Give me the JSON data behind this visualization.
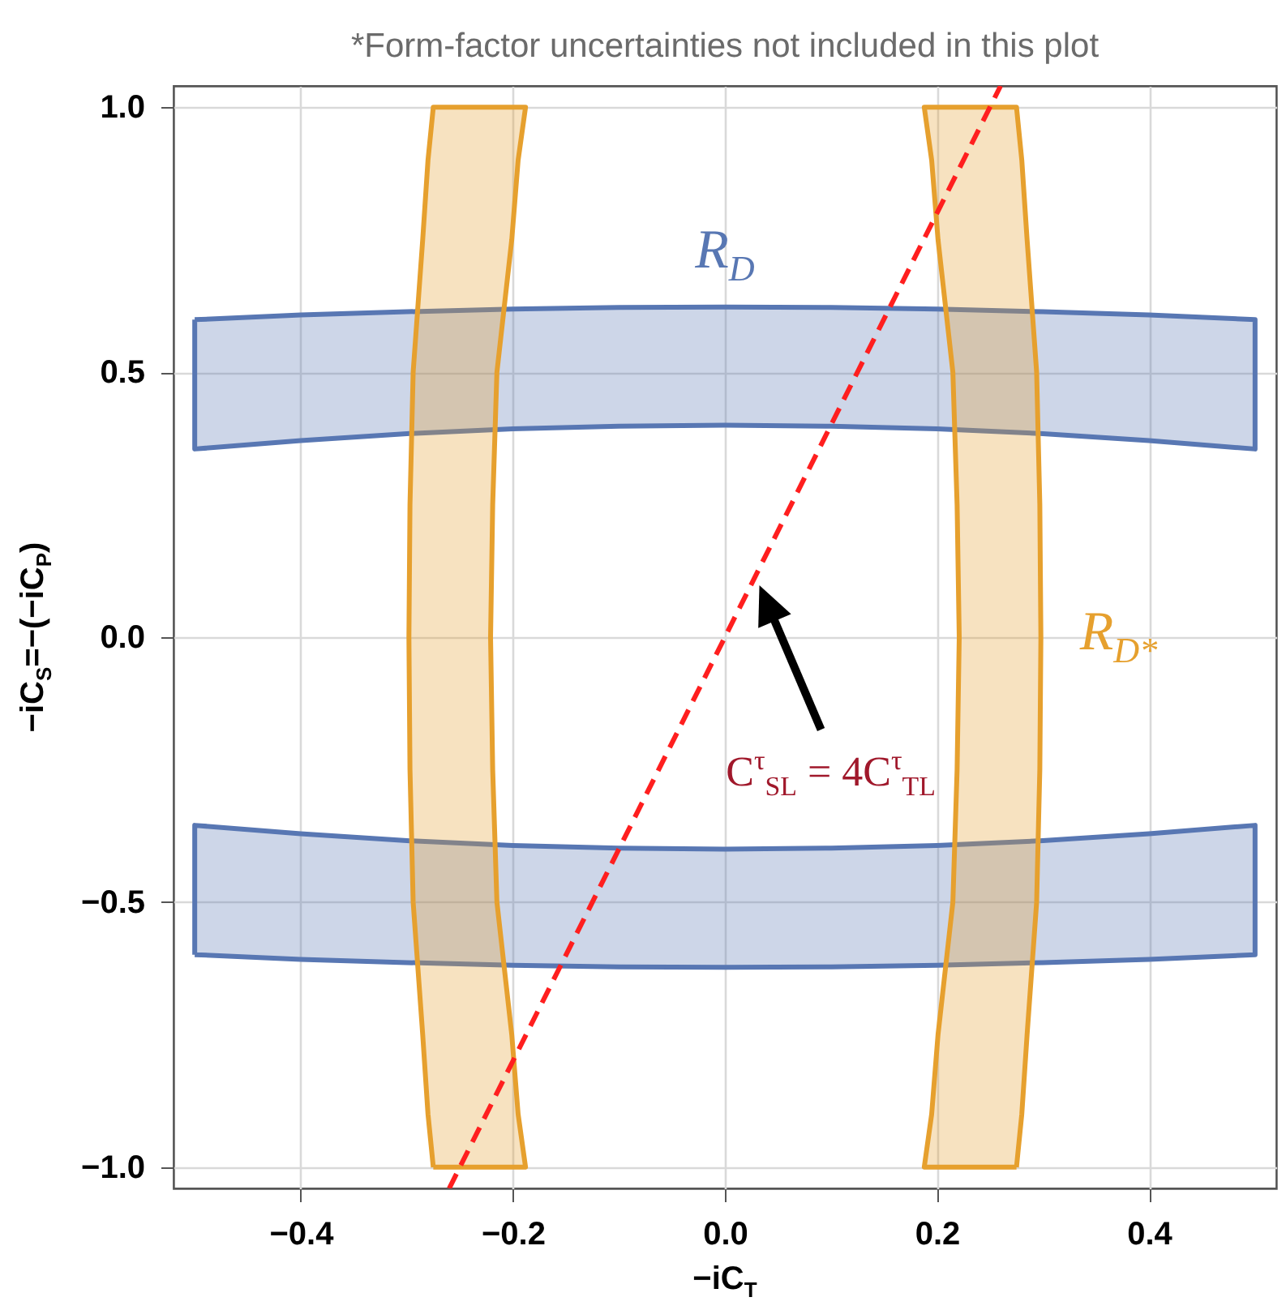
{
  "chart_data": {
    "type": "area",
    "title": "*Form-factor uncertainties not included in this plot",
    "xlabel": "−iC$_{T}$",
    "ylabel": "−iC$_{S}$=−(−iC$_{P}$)",
    "xlim": [
      -0.52,
      0.52
    ],
    "ylim": [
      -1.04,
      1.04
    ],
    "xticks": [
      {
        "value": -0.4,
        "label": "−0.4"
      },
      {
        "value": -0.2,
        "label": "−0.2"
      },
      {
        "value": 0,
        "label": "0.0"
      },
      {
        "value": 0.2,
        "label": "0.2"
      },
      {
        "value": 0.4,
        "label": "0.4"
      }
    ],
    "yticks": [
      {
        "value": -1,
        "label": "−1.0"
      },
      {
        "value": -0.5,
        "label": "−0.5"
      },
      {
        "value": 0,
        "label": "0.0"
      },
      {
        "value": 0.5,
        "label": "0.5"
      },
      {
        "value": 1,
        "label": "1.0"
      }
    ],
    "grid": true,
    "series": [
      {
        "name": "R$_{D}$",
        "color": "#5877b3",
        "x": [
          -0.5,
          -0.4,
          -0.3,
          -0.2,
          -0.1,
          0,
          0.1,
          0.2,
          0.3,
          0.4,
          0.5,
          0.5,
          0.4,
          0.3,
          0.2,
          0.1,
          0,
          -0.1,
          -0.2,
          -0.3,
          -0.4,
          -0.5,
          -0.5
        ],
        "values": [
          0.599,
          0.608,
          0.614,
          0.619,
          0.622,
          0.623,
          0.622,
          0.619,
          0.614,
          0.608,
          0.599,
          0.355,
          0.371,
          0.384,
          0.393,
          0.398,
          0.4,
          0.398,
          0.393,
          0.384,
          0.371,
          0.355,
          0.599
        ]
      },
      {
        "color": "#5877b3",
        "x": [
          -0.5,
          -0.4,
          -0.3,
          -0.2,
          -0.1,
          0,
          0.1,
          0.2,
          0.3,
          0.4,
          0.5,
          0.5,
          0.4,
          0.3,
          0.2,
          0.1,
          0,
          -0.1,
          -0.2,
          -0.3,
          -0.4,
          -0.5,
          -0.5
        ],
        "values": [
          -0.599,
          -0.608,
          -0.614,
          -0.619,
          -0.622,
          -0.623,
          -0.622,
          -0.619,
          -0.614,
          -0.608,
          -0.599,
          -0.355,
          -0.371,
          -0.384,
          -0.393,
          -0.398,
          -0.4,
          -0.398,
          -0.393,
          -0.384,
          -0.371,
          -0.355,
          -0.599
        ]
      },
      {
        "color": "#e6a02e",
        "x": [
          -0.275,
          -0.28,
          -0.285,
          -0.294,
          -0.297,
          -0.298,
          -0.297,
          -0.294,
          -0.285,
          -0.28,
          -0.275,
          -0.188,
          -0.195,
          -0.201,
          -0.215,
          -0.219,
          -0.221,
          -0.219,
          -0.215,
          -0.201,
          -0.195,
          -0.188,
          -0.275
        ],
        "values": [
          -1,
          -0.9,
          -0.75,
          -0.5,
          -0.25,
          0,
          0.25,
          0.5,
          0.75,
          0.9,
          1,
          1,
          0.9,
          0.75,
          0.5,
          0.25,
          0,
          -0.25,
          -0.5,
          -0.75,
          -0.9,
          -1,
          -1
        ]
      },
      {
        "name": "R$_{D*}$",
        "color": "#e6a02e",
        "x": [
          0.275,
          0.28,
          0.285,
          0.294,
          0.297,
          0.298,
          0.297,
          0.294,
          0.285,
          0.28,
          0.275,
          0.188,
          0.195,
          0.201,
          0.215,
          0.219,
          0.221,
          0.219,
          0.215,
          0.201,
          0.195,
          0.188,
          0.275
        ],
        "values": [
          -1,
          -0.9,
          -0.75,
          -0.5,
          -0.25,
          0,
          0.25,
          0.5,
          0.75,
          0.9,
          1,
          1,
          0.9,
          0.75,
          0.5,
          0.25,
          0,
          -0.25,
          -0.5,
          -0.75,
          -0.9,
          -1,
          -1
        ]
      },
      {
        "type": "line",
        "color": "#ff1f1f",
        "line_style": "dashed",
        "x": [
          -0.26,
          0.26
        ],
        "values": [
          -1.04,
          1.04
        ]
      }
    ],
    "annotations": [
      "C$^{τ}$$_{SL}$ = 4C$^{τ}$$_{TL}$"
    ]
  }
}
